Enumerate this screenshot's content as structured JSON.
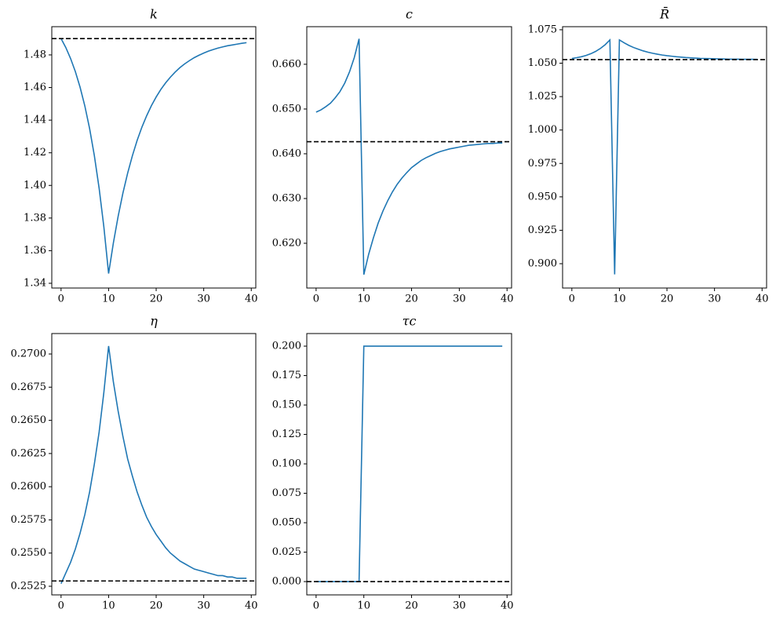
{
  "chart_data": [
    {
      "type": "line",
      "title": "k",
      "color": "#1f77b4",
      "hline": 1.49,
      "x": [
        0,
        1,
        2,
        3,
        4,
        5,
        6,
        7,
        8,
        9,
        10,
        11,
        12,
        13,
        14,
        15,
        16,
        17,
        18,
        19,
        20,
        21,
        22,
        23,
        24,
        25,
        26,
        27,
        28,
        29,
        30,
        31,
        32,
        33,
        34,
        35,
        36,
        37,
        38,
        39
      ],
      "values": [
        1.49,
        1.4845,
        1.4778,
        1.4698,
        1.4602,
        1.4487,
        1.4349,
        1.4183,
        1.3984,
        1.3746,
        1.346,
        1.3647,
        1.381,
        1.3952,
        1.4075,
        1.4182,
        1.4276,
        1.4357,
        1.4427,
        1.4489,
        1.4542,
        1.4589,
        1.4629,
        1.4664,
        1.4695,
        1.4722,
        1.4745,
        1.4765,
        1.4783,
        1.4798,
        1.4811,
        1.4823,
        1.4833,
        1.4842,
        1.4849,
        1.4856,
        1.4861,
        1.4866,
        1.4871,
        1.4875
      ],
      "xlim": [
        -1.95,
        40.95
      ],
      "xticks": [
        0,
        10,
        20,
        30,
        40
      ],
      "ylim": [
        1.3371,
        1.4973
      ],
      "yticks": [
        1.34,
        1.36,
        1.38,
        {
          "value": 1.4,
          "label": "1.40"
        },
        1.42,
        1.44,
        1.46,
        1.48
      ]
    },
    {
      "type": "line",
      "title": "c",
      "color": "#1f77b4",
      "hline": 0.6427,
      "x": [
        0,
        1,
        2,
        3,
        4,
        5,
        6,
        7,
        8,
        9,
        10,
        11,
        12,
        13,
        14,
        15,
        16,
        17,
        18,
        19,
        20,
        21,
        22,
        23,
        24,
        25,
        26,
        27,
        28,
        29,
        30,
        31,
        32,
        33,
        34,
        35,
        36,
        37,
        38,
        39
      ],
      "values": [
        0.6493,
        0.6498,
        0.6505,
        0.6513,
        0.6525,
        0.6539,
        0.6558,
        0.6583,
        0.6615,
        0.6657,
        0.613,
        0.6175,
        0.6212,
        0.6245,
        0.6272,
        0.6295,
        0.6315,
        0.6332,
        0.6346,
        0.6358,
        0.6369,
        0.6377,
        0.6385,
        0.6391,
        0.6396,
        0.6401,
        0.6405,
        0.6408,
        0.6411,
        0.6413,
        0.6415,
        0.6417,
        0.6419,
        0.642,
        0.6421,
        0.6422,
        0.6423,
        0.6423,
        0.6424,
        0.6424
      ],
      "xlim": [
        -1.95,
        40.95
      ],
      "xticks": [
        0,
        10,
        20,
        30,
        40
      ],
      "ylim": [
        0.61,
        0.6684
      ],
      "yticks": [
        {
          "value": 0.62,
          "label": "0.620"
        },
        {
          "value": 0.63,
          "label": "0.630"
        },
        {
          "value": 0.64,
          "label": "0.640"
        },
        {
          "value": 0.65,
          "label": "0.650"
        },
        {
          "value": 0.66,
          "label": "0.660"
        }
      ]
    },
    {
      "type": "line",
      "title": "R̄",
      "color": "#1f77b4",
      "hline": 1.0527,
      "x": [
        0,
        1,
        2,
        3,
        4,
        5,
        6,
        7,
        8,
        9,
        10,
        11,
        12,
        13,
        14,
        15,
        16,
        17,
        18,
        19,
        20,
        21,
        22,
        23,
        24,
        25,
        26,
        27,
        28,
        29,
        30,
        31,
        32,
        33,
        34,
        35,
        36,
        37,
        38,
        39
      ],
      "values": [
        1.0535,
        1.0541,
        1.0548,
        1.0558,
        1.0571,
        1.0588,
        1.061,
        1.0638,
        1.0674,
        0.892,
        1.0674,
        1.0652,
        1.0633,
        1.0617,
        1.0604,
        1.0592,
        1.0582,
        1.0574,
        1.0567,
        1.0561,
        1.0556,
        1.0552,
        1.0548,
        1.0545,
        1.0542,
        1.054,
        1.0538,
        1.0536,
        1.0535,
        1.0534,
        1.0533,
        1.0532,
        1.0531,
        1.053,
        1.053,
        1.053,
        1.0529,
        1.0529,
        1.0529,
        1.0528
      ],
      "xlim": [
        -1.95,
        40.95
      ],
      "xticks": [
        0,
        10,
        20,
        30,
        40
      ],
      "ylim": [
        0.8818,
        1.0773
      ],
      "yticks": [
        {
          "value": 0.9,
          "label": "0.900"
        },
        0.925,
        {
          "value": 0.95,
          "label": "0.950"
        },
        0.975,
        {
          "value": 1.0,
          "label": "1.000"
        },
        1.025,
        {
          "value": 1.05,
          "label": "1.050"
        },
        1.075
      ]
    },
    {
      "type": "line",
      "title": "η",
      "color": "#1f77b4",
      "hline": 0.2529,
      "x": [
        0,
        1,
        2,
        3,
        4,
        5,
        6,
        7,
        8,
        9,
        10,
        11,
        12,
        13,
        14,
        15,
        16,
        17,
        18,
        19,
        20,
        21,
        22,
        23,
        24,
        25,
        26,
        27,
        28,
        29,
        30,
        31,
        32,
        33,
        34,
        35,
        36,
        37,
        38,
        39
      ],
      "values": [
        0.2527,
        0.2535,
        0.2543,
        0.2553,
        0.2565,
        0.2579,
        0.2596,
        0.2617,
        0.2641,
        0.2671,
        0.2706,
        0.2679,
        0.2657,
        0.2638,
        0.2621,
        0.2608,
        0.2596,
        0.2586,
        0.2577,
        0.257,
        0.2564,
        0.2559,
        0.2554,
        0.255,
        0.2547,
        0.2544,
        0.2542,
        0.254,
        0.2538,
        0.2537,
        0.2536,
        0.2535,
        0.2534,
        0.2533,
        0.2533,
        0.2532,
        0.2532,
        0.2531,
        0.2531,
        0.2531
      ],
      "xlim": [
        -1.95,
        40.95
      ],
      "xticks": [
        0,
        10,
        20,
        30,
        40
      ],
      "ylim": [
        0.25185,
        0.27154
      ],
      "yticks": [
        0.2525,
        {
          "value": 0.255,
          "label": "0.2550"
        },
        0.2575,
        {
          "value": 0.26,
          "label": "0.2600"
        },
        0.2625,
        {
          "value": 0.265,
          "label": "0.2650"
        },
        0.2675,
        {
          "value": 0.27,
          "label": "0.2700"
        }
      ]
    },
    {
      "type": "line",
      "title": "τc",
      "color": "#1f77b4",
      "hline": 0,
      "x": [
        0,
        1,
        2,
        3,
        4,
        5,
        6,
        7,
        8,
        9,
        10,
        11,
        12,
        13,
        14,
        15,
        16,
        17,
        18,
        19,
        20,
        21,
        22,
        23,
        24,
        25,
        26,
        27,
        28,
        29,
        30,
        31,
        32,
        33,
        34,
        35,
        36,
        37,
        38,
        39
      ],
      "values": [
        0,
        0,
        0,
        0,
        0,
        0,
        0,
        0,
        0,
        0,
        0.2,
        0.2,
        0.2,
        0.2,
        0.2,
        0.2,
        0.2,
        0.2,
        0.2,
        0.2,
        0.2,
        0.2,
        0.2,
        0.2,
        0.2,
        0.2,
        0.2,
        0.2,
        0.2,
        0.2,
        0.2,
        0.2,
        0.2,
        0.2,
        0.2,
        0.2,
        0.2,
        0.2,
        0.2,
        0.2
      ],
      "xlim": [
        -1.95,
        40.95
      ],
      "xticks": [
        0,
        10,
        20,
        30,
        40
      ],
      "ylim": [
        -0.0113,
        0.2107
      ],
      "yticks": [
        {
          "value": 0,
          "label": "0.000"
        },
        0.025,
        {
          "value": 0.05,
          "label": "0.050"
        },
        0.075,
        {
          "value": 0.1,
          "label": "0.100"
        },
        0.125,
        {
          "value": 0.15,
          "label": "0.150"
        },
        0.175,
        {
          "value": 0.2,
          "label": "0.200"
        }
      ]
    }
  ]
}
